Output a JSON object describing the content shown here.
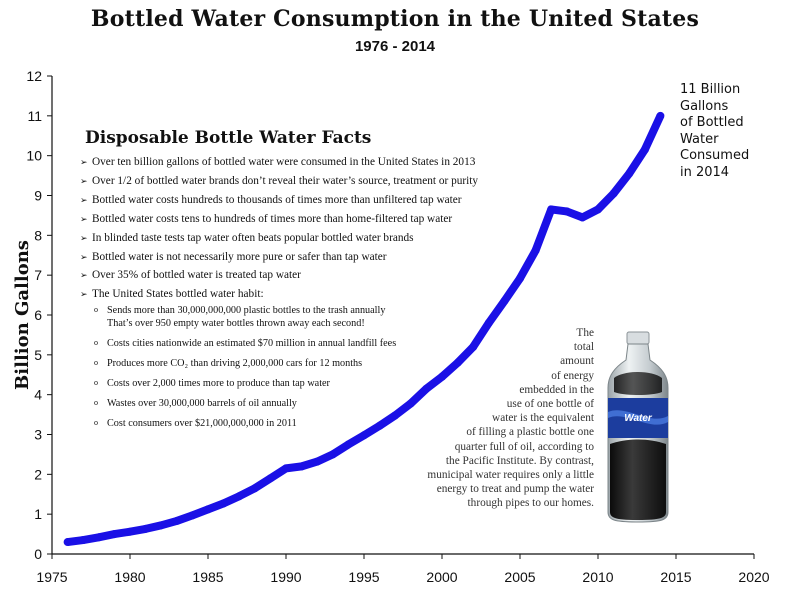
{
  "title": "Bottled Water Consumption in the United States",
  "subtitle": "1976 - 2014",
  "ylabel": "Billion Gallons",
  "colors": {
    "line": "#1a10e6",
    "axis": "#111111"
  },
  "chart_data": {
    "type": "line",
    "title": "Bottled Water Consumption in the United States",
    "subtitle": "1976 - 2014",
    "xlabel": "",
    "ylabel": "Billion Gallons",
    "xlim": [
      1975,
      2020
    ],
    "ylim": [
      0,
      12
    ],
    "xticks": [
      1975,
      1980,
      1985,
      1990,
      1995,
      2000,
      2005,
      2010,
      2015,
      2020
    ],
    "yticks": [
      0,
      1,
      2,
      3,
      4,
      5,
      6,
      7,
      8,
      9,
      10,
      11,
      12
    ],
    "grid": false,
    "x": [
      1976,
      1977,
      1978,
      1979,
      1980,
      1981,
      1982,
      1983,
      1984,
      1985,
      1986,
      1987,
      1988,
      1989,
      1990,
      1991,
      1992,
      1993,
      1994,
      1995,
      1996,
      1997,
      1998,
      1999,
      2000,
      2001,
      2002,
      2003,
      2004,
      2005,
      2006,
      2007,
      2008,
      2009,
      2010,
      2011,
      2012,
      2013,
      2014
    ],
    "series": [
      {
        "values": [
          0.3,
          0.35,
          0.42,
          0.5,
          0.56,
          0.63,
          0.72,
          0.83,
          0.97,
          1.12,
          1.27,
          1.45,
          1.65,
          1.9,
          2.15,
          2.2,
          2.32,
          2.5,
          2.75,
          2.98,
          3.22,
          3.48,
          3.78,
          4.15,
          4.45,
          4.8,
          5.2,
          5.8,
          6.35,
          6.92,
          7.62,
          8.65,
          8.6,
          8.45,
          8.65,
          9.05,
          9.55,
          10.15,
          11.0
        ]
      }
    ]
  },
  "endnote": [
    "11 Billion",
    "Gallons",
    "of Bottled",
    "Water",
    "Consumed",
    "in 2014"
  ],
  "facts": {
    "title": "Disposable Bottle Water Facts",
    "items": [
      "Over ten billion gallons of bottled water were consumed in the United States in 2013",
      "Over 1/2 of bottled water brands don’t reveal their water’s source, treatment or purity",
      "Bottled water costs hundreds to thousands of times more than unfiltered tap water",
      "Bottled water costs tens to hundreds of times more than home-filtered tap water",
      "In blinded taste tests tap water often beats popular bottled water brands",
      "Bottled water is not necessarily more pure or safer than tap water",
      "Over 35% of bottled water is treated tap water",
      "The United States bottled water habit:"
    ],
    "habit": [
      [
        "Sends more than 30,000,000,000 plastic bottles to the trash annually",
        "That’s over 950 empty water bottles thrown away each second!"
      ],
      [
        "Costs cities nationwide an estimated $70 million in annual landfill fees"
      ],
      [
        "Produces more CO₂ than driving 2,000,000 cars for 12 months"
      ],
      [
        "Costs over 2,000 times more to produce than tap water"
      ],
      [
        "Wastes over 30,000,000 barrels of oil annually"
      ],
      [
        "Cost consumers over $21,000,000,000 in 2011"
      ]
    ]
  },
  "bottle_note": [
    "The",
    "total",
    "amount",
    "of energy",
    "embedded in the",
    "use of one bottle of",
    "water is the equivalent",
    "of filling a plastic bottle one",
    "quarter full of oil, according to",
    "the Pacific Institute. By contrast,",
    "municipal water requires only a little",
    "energy to treat and pump the water",
    "through pipes to our homes."
  ],
  "bottle_label": "Water"
}
